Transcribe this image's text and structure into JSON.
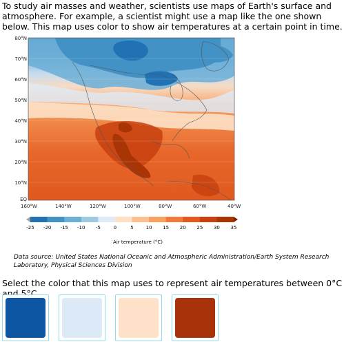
{
  "intro_text": "To study air masses and weather, scientists use maps of Earth's surface and atmosphere. For example, a scientist might use a map like the one shown below. This map uses color to show air temperatures at a certain point in time.",
  "map": {
    "latitude_labels": [
      "80°N",
      "70°N",
      "60°N",
      "50°N",
      "40°N",
      "30°N",
      "20°N",
      "10°N",
      "EQ"
    ],
    "longitude_labels": [
      "160°W",
      "140°W",
      "120°W",
      "100°W",
      "80°W",
      "60°W",
      "40°W"
    ],
    "colorbar_ticks": [
      "-25",
      "-20",
      "-15",
      "-10",
      "-5",
      "0",
      "5",
      "10",
      "15",
      "20",
      "25",
      "30",
      "35"
    ],
    "colorbar_label": "Air temperature (°C)",
    "colors": {
      "c_neg25": "#08519c",
      "c_neg20": "#2171b5",
      "c_neg15": "#4292c6",
      "c_neg10": "#6baed6",
      "c_neg5": "#9ecae1",
      "c_0": "#deebf7",
      "c_5": "#fde0c5",
      "c_10": "#fcbf8e",
      "c_15": "#f9a05f",
      "c_20": "#f27a3a",
      "c_25": "#e35a1f",
      "c_30": "#c7400e",
      "c_35": "#a93405"
    }
  },
  "source_text": "Data source: United States National Oceanic and Atmospheric Administration/Earth System Research Laboratory, Physical Sciences Division",
  "question_text": "Select the color that this map uses to represent air temperatures between 0°C and 5°C.",
  "choices": [
    {
      "color": "#0d56a3"
    },
    {
      "color": "#dce9f6"
    },
    {
      "color": "#fde1c9"
    },
    {
      "color": "#a8320a"
    }
  ]
}
